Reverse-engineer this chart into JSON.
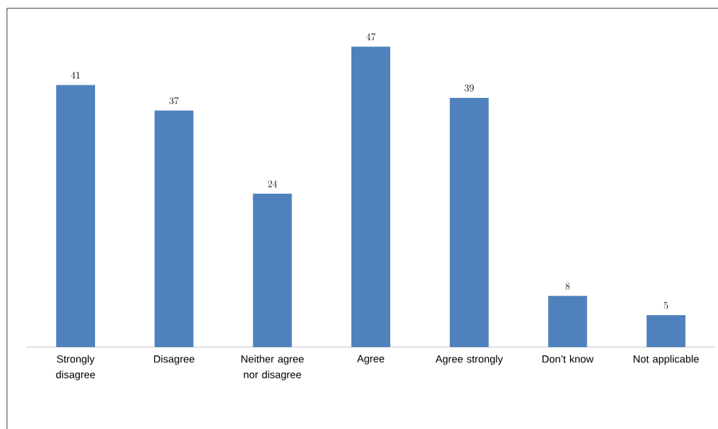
{
  "chart_data": {
    "type": "bar",
    "categories": [
      "Strongly disagree",
      "Disagree",
      "Neither agree nor disagree",
      "Agree",
      "Agree strongly",
      "Don’t know",
      "Not applicable"
    ],
    "values": [
      41,
      37,
      24,
      47,
      39,
      8,
      5
    ],
    "color": "#4f81bd",
    "ylim": [
      0,
      53
    ],
    "data_labels": true
  }
}
